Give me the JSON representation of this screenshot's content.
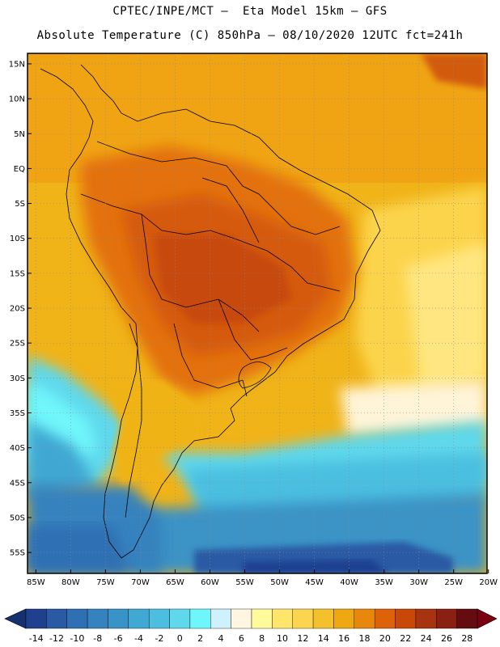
{
  "header": {
    "title_line1": "CPTEC/INPE/MCT –  Eta Model 15km – GFS",
    "title_line2": "Absolute Temperature (C) 850hPa – 08/10/2020 12UTC fct=241h"
  },
  "map": {
    "lat_labels": [
      "15N",
      "10N",
      "5N",
      "EQ",
      "5S",
      "10S",
      "15S",
      "20S",
      "25S",
      "30S",
      "35S",
      "40S",
      "45S",
      "50S",
      "55S"
    ],
    "lon_labels": [
      "85W",
      "80W",
      "75W",
      "70W",
      "65W",
      "60W",
      "55W",
      "50W",
      "45W",
      "40W",
      "35W",
      "30W",
      "25W",
      "20W"
    ],
    "lat_values": [
      15,
      10,
      5,
      0,
      -5,
      -10,
      -15,
      -20,
      -25,
      -30,
      -35,
      -40,
      -45,
      -50,
      -55
    ],
    "lon_values": [
      -85,
      -80,
      -75,
      -70,
      -65,
      -60,
      -55,
      -50,
      -45,
      -40,
      -35,
      -30,
      -25,
      -20
    ],
    "lat_range": [
      -58,
      16.5
    ],
    "lon_range": [
      -86.2,
      -20.2
    ],
    "grid": "dotted",
    "variable": "Absolute Temperature (C) 850hPa"
  },
  "colorbar": {
    "labels": [
      "-14",
      "-12",
      "-10",
      "-8",
      "-6",
      "-4",
      "-2",
      "0",
      "2",
      "4",
      "6",
      "8",
      "10",
      "12",
      "14",
      "16",
      "18",
      "20",
      "22",
      "24",
      "26",
      "28"
    ],
    "colors": [
      "#1f3f8f",
      "#2a5aa4",
      "#2f6fb3",
      "#3582be",
      "#3a93c6",
      "#41a7d3",
      "#4cbfe0",
      "#5fd8ec",
      "#6ff6fb",
      "#cdf2fb",
      "#fff5e0",
      "#fffa9c",
      "#ffe66a",
      "#fbd450",
      "#f4c12c",
      "#eea812",
      "#e7870c",
      "#de620a",
      "#c94808",
      "#a83310",
      "#8a2012",
      "#650c10"
    ],
    "extend": "both"
  }
}
